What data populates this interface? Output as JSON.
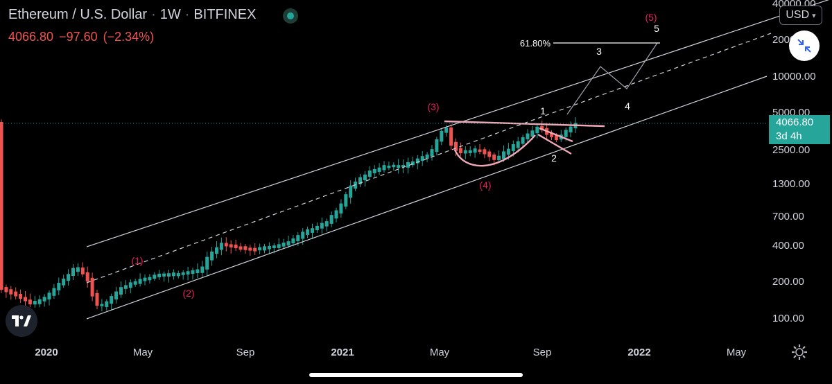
{
  "header": {
    "symbol": "Ethereum / U.S. Dollar",
    "interval": "1W",
    "exchange": "BITFINEX",
    "last_price": "4066.80",
    "change": "−97.60",
    "change_pct": "(−2.34%)"
  },
  "currency_selector": {
    "label": "USD"
  },
  "price_label": {
    "value": "4066.80",
    "countdown": "3d 4h"
  },
  "colors": {
    "up": "#26a69a",
    "down": "#ef5350",
    "wave": "#e91e63",
    "background": "#000000"
  },
  "icons": [
    "live-status-icon",
    "chevron-down-icon",
    "auto-scale-icon",
    "tradingview-logo-icon",
    "settings-gear-icon"
  ],
  "chart_data": {
    "type": "candlestick",
    "symbol": "ETHUSD",
    "y_scale": "log",
    "y_ticks": [
      "40000.00",
      "20000.00",
      "10000.00",
      "5000.00",
      "2500.00",
      "1300.00",
      "700.00",
      "400.00",
      "200.00",
      "100.00"
    ],
    "x_ticks": [
      "2020",
      "May",
      "Sep",
      "2021",
      "May",
      "Sep",
      "2022",
      "May"
    ],
    "wave_labels": [
      {
        "text": "(1)",
        "date": "2020-06-15",
        "price": 260
      },
      {
        "text": "(2)",
        "date": "2020-09-15",
        "price": 135
      },
      {
        "text": "(3)",
        "date": "2021-05-10",
        "price": 5800
      },
      {
        "text": "(4)",
        "date": "2021-07-20",
        "price": 1250
      },
      {
        "text": "(5)",
        "date": "2021-12-20",
        "price": 42000
      }
    ],
    "sub_wave_labels": [
      {
        "text": "1",
        "date": "2021-09-10",
        "price": 5600
      },
      {
        "text": "2",
        "date": "2021-09-20",
        "price": 2300
      },
      {
        "text": "3",
        "date": "2021-11-15",
        "price": 18000
      },
      {
        "text": "4",
        "date": "2021-12-01",
        "price": 5900
      },
      {
        "text": "5",
        "date": "2021-12-22",
        "price": 35000
      }
    ],
    "fib_label": "61.80%",
    "fib_price": 25000,
    "last_price": 4066.8
  }
}
